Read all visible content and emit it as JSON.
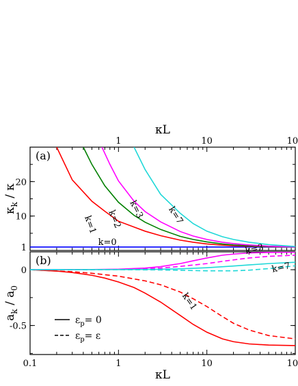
{
  "colors": {
    "k0": "#0000ff",
    "k1": "#ff0000",
    "k2": "#008000",
    "k3": "#ff00ff",
    "k7": "#20d8d8",
    "ref": "#444444"
  },
  "top_axis": {
    "label": "κL",
    "ticks": [
      {
        "v": 1,
        "label": "1"
      },
      {
        "v": 10,
        "label": "10"
      },
      {
        "v": 100,
        "label": "100"
      }
    ]
  },
  "bottom_axis": {
    "label": "κL",
    "ticks": [
      {
        "v": 0.1,
        "label": "0.1"
      },
      {
        "v": 1,
        "label": "1"
      },
      {
        "v": 10,
        "label": "10"
      },
      {
        "v": 100,
        "label": "100"
      }
    ]
  },
  "chart_data": [
    {
      "type": "line",
      "panel": "(a)",
      "ylabel_main": "κ",
      "ylabel_sub": "k",
      "ylabel_rest": " / κ",
      "xscale": "log",
      "xlim": [
        0.1,
        100
      ],
      "ylim": [
        0,
        30
      ],
      "yticks": [
        {
          "v": 1,
          "label": "1"
        },
        {
          "v": 10,
          "label": "10"
        },
        {
          "v": 20,
          "label": "20"
        }
      ],
      "series": [
        {
          "name": "k=0",
          "color_key": "k0",
          "dash": false,
          "x": [
            0.1,
            100
          ],
          "y": [
            1,
            1
          ]
        },
        {
          "name": "k=1",
          "color_key": "k1",
          "dash": false,
          "x": [
            0.2,
            0.3,
            0.5,
            0.7,
            1,
            1.5,
            2,
            3,
            5,
            7,
            10,
            15,
            20,
            30,
            50,
            100
          ],
          "y": [
            30,
            20.5,
            14.3,
            11.4,
            8.5,
            6.8,
            5.6,
            4.3,
            3.0,
            2.4,
            1.9,
            1.55,
            1.38,
            1.22,
            1.1,
            1.02
          ]
        },
        {
          "name": "k=2",
          "color_key": "k2",
          "dash": false,
          "x": [
            0.4,
            0.5,
            0.7,
            1,
            1.5,
            2,
            3,
            5,
            7,
            10,
            15,
            20,
            30,
            50,
            100
          ],
          "y": [
            30,
            25,
            18.8,
            14,
            10.2,
            8.2,
            6.1,
            4.1,
            3.2,
            2.5,
            1.9,
            1.6,
            1.35,
            1.15,
            1.04
          ]
        },
        {
          "name": "k=3",
          "color_key": "k3",
          "dash": false,
          "x": [
            0.65,
            0.8,
            1,
            1.5,
            2,
            3,
            5,
            7,
            10,
            15,
            20,
            30,
            50,
            100
          ],
          "y": [
            30,
            25,
            20.2,
            14.3,
            11.3,
            8.3,
            5.5,
            4.2,
            3.2,
            2.4,
            2.0,
            1.6,
            1.25,
            1.06
          ]
        },
        {
          "name": "k=7",
          "color_key": "k7",
          "dash": false,
          "x": [
            1.5,
            2,
            3,
            5,
            7,
            10,
            15,
            20,
            30,
            50,
            100
          ],
          "y": [
            30,
            23.5,
            16.3,
            10.8,
            7.8,
            5.6,
            4.0,
            3.2,
            2.4,
            1.7,
            1.15
          ]
        }
      ],
      "labels": [
        {
          "text": "k=0",
          "color_key": "k0",
          "x": 0.75,
          "y": 1.6,
          "rot": 0
        },
        {
          "text": "k=1",
          "color_key": "k1",
          "x": 0.45,
          "y": 7.2,
          "rot": 70
        },
        {
          "text": "k=2",
          "color_key": "k2",
          "x": 0.85,
          "y": 8.8,
          "rot": 68
        },
        {
          "text": "k=3",
          "color_key": "k3",
          "x": 1.5,
          "y": 11.6,
          "rot": 64
        },
        {
          "text": "k=7",
          "color_key": "k7",
          "x": 4.2,
          "y": 9.8,
          "rot": 58
        }
      ]
    },
    {
      "type": "line",
      "panel": "(b)",
      "ylabel_main": "a",
      "ylabel_sub": "k",
      "ylabel_rest": " / a",
      "ylabel_sub2": "0",
      "xscale": "log",
      "xlim": [
        0.1,
        100
      ],
      "ylim": [
        -0.76,
        0.16
      ],
      "yticks": [
        {
          "v": 0,
          "label": "0"
        },
        {
          "v": -0.5,
          "label": "-0.5"
        }
      ],
      "series": [
        {
          "name": "k=1 solid",
          "color_key": "k1",
          "dash": false,
          "x": [
            0.1,
            0.2,
            0.3,
            0.5,
            0.7,
            1,
            1.5,
            2,
            3,
            5,
            7,
            10,
            15,
            20,
            30,
            50,
            100
          ],
          "y": [
            0,
            -0.012,
            -0.025,
            -0.05,
            -0.075,
            -0.11,
            -0.16,
            -0.21,
            -0.29,
            -0.41,
            -0.49,
            -0.56,
            -0.62,
            -0.645,
            -0.665,
            -0.675,
            -0.68
          ]
        },
        {
          "name": "k=1 dashed",
          "color_key": "k1",
          "dash": true,
          "x": [
            0.1,
            0.3,
            0.5,
            1,
            2,
            3,
            5,
            7,
            10,
            15,
            20,
            30,
            50,
            100
          ],
          "y": [
            0,
            -0.018,
            -0.032,
            -0.058,
            -0.1,
            -0.135,
            -0.2,
            -0.26,
            -0.33,
            -0.42,
            -0.48,
            -0.54,
            -0.59,
            -0.62
          ]
        },
        {
          "name": "k=3 solid",
          "color_key": "k3",
          "dash": false,
          "x": [
            0.1,
            0.5,
            1,
            2,
            3,
            5,
            7,
            10,
            15,
            20,
            30,
            50,
            100
          ],
          "y": [
            0,
            0.002,
            0.005,
            0.015,
            0.028,
            0.055,
            0.08,
            0.105,
            0.13,
            0.14,
            0.15,
            0.155,
            0.157
          ]
        },
        {
          "name": "k=3 dashed",
          "color_key": "k3",
          "dash": true,
          "x": [
            0.1,
            0.5,
            1,
            2,
            3,
            5,
            7,
            10,
            15,
            20,
            30,
            50,
            100
          ],
          "y": [
            0,
            0.001,
            0.003,
            0.008,
            0.015,
            0.03,
            0.042,
            0.055,
            0.075,
            0.088,
            0.105,
            0.12,
            0.13
          ]
        },
        {
          "name": "k=7 solid",
          "color_key": "k7",
          "dash": false,
          "x": [
            0.1,
            1,
            3,
            5,
            10,
            20,
            30,
            50,
            100
          ],
          "y": [
            0,
            0.001,
            0.004,
            0.008,
            0.018,
            0.033,
            0.043,
            0.055,
            0.067
          ]
        },
        {
          "name": "k=7 dashed",
          "color_key": "k7",
          "dash": true,
          "x": [
            0.1,
            1,
            3,
            5,
            10,
            20,
            30,
            50,
            100
          ],
          "y": [
            0,
            0.0,
            -0.002,
            -0.005,
            -0.01,
            -0.01,
            -0.004,
            0.01,
            0.035
          ]
        }
      ],
      "labels": [
        {
          "text": "k=3",
          "color_key": "k3",
          "x": 35,
          "y": 0.16,
          "rot": -12
        },
        {
          "text": "k=7",
          "color_key": "k7",
          "x": 70,
          "y": -0.005,
          "rot": -12
        },
        {
          "text": "k=1",
          "color_key": "k1",
          "x": 6.0,
          "y": -0.3,
          "rot": 55
        }
      ],
      "legend": {
        "solid_main": "ε",
        "solid_sub": "p",
        "solid_rest": "= 0",
        "dashed_main": "ε",
        "dashed_sub": "p",
        "dashed_rest": "= ε"
      }
    }
  ]
}
